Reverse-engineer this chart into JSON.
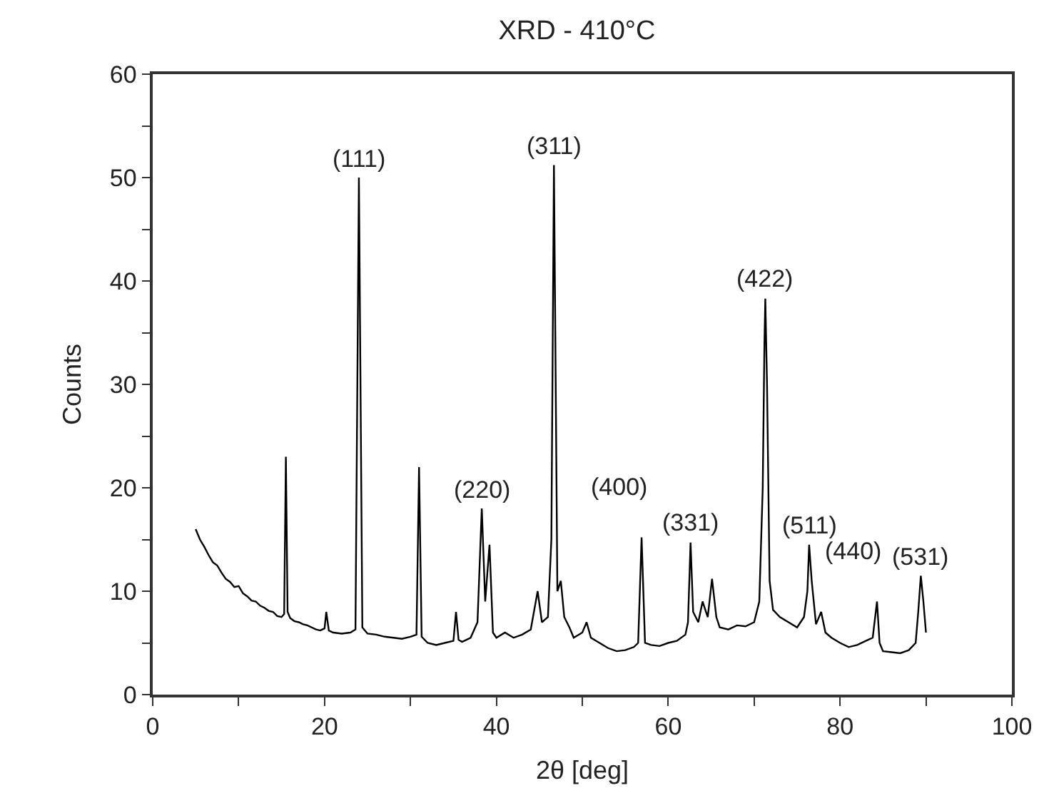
{
  "chart_data": {
    "type": "line",
    "title": "XRD - 410°C",
    "xlabel": "2θ [deg]",
    "ylabel": "Counts",
    "xlim": [
      0,
      100
    ],
    "ylim": [
      0,
      60
    ],
    "xticks": [
      0,
      {
        "value": 10,
        "label": null
      },
      20,
      {
        "value": 30,
        "label": null
      },
      40,
      {
        "value": 50,
        "label": null
      },
      60,
      {
        "value": 70,
        "label": null
      },
      80,
      {
        "value": 90,
        "label": null
      },
      100
    ],
    "yticks": [
      0,
      {
        "value": 5,
        "label": null
      },
      10,
      {
        "value": 15,
        "label": null
      },
      20,
      {
        "value": 25,
        "label": null
      },
      30,
      {
        "value": 35,
        "label": null
      },
      40,
      {
        "value": 45,
        "label": null
      },
      50,
      {
        "value": 55,
        "label": null
      },
      60
    ],
    "marker": "none",
    "line_style": "solid",
    "series": [
      {
        "color": "#000000",
        "x": [
          5,
          5.5,
          6,
          6.5,
          7,
          7.5,
          8,
          8.5,
          9,
          9.5,
          10,
          10.5,
          11,
          11.5,
          12,
          12.5,
          13,
          13.5,
          14,
          14.5,
          15,
          15.3,
          15.5,
          15.7,
          16,
          16.5,
          17,
          17.5,
          18,
          18.5,
          19,
          19.5,
          20,
          20.2,
          20.5,
          21,
          22,
          23,
          23.6,
          24,
          24.4,
          25,
          26,
          27,
          28,
          29,
          30,
          30.7,
          31,
          31.3,
          32,
          33,
          34,
          35,
          35.3,
          35.6,
          36,
          37,
          37.8,
          38.3,
          38.7,
          39.2,
          39.6,
          40,
          41,
          42,
          43,
          44,
          44.8,
          45.3,
          46,
          46.4,
          46.7,
          47.1,
          47.5,
          47.9,
          48.5,
          49,
          50,
          50.5,
          51,
          52,
          53,
          54,
          55,
          56,
          56.5,
          56.9,
          57.3,
          58,
          59,
          60,
          61,
          62,
          62.3,
          62.6,
          62.9,
          63.5,
          64,
          64.6,
          65.1,
          65.6,
          66,
          67,
          68,
          69,
          70,
          70.6,
          71,
          71.2,
          71.3,
          71.5,
          71.8,
          72.2,
          73,
          74,
          75,
          75.8,
          76.2,
          76.4,
          76.7,
          77.2,
          77.8,
          78.3,
          79,
          80,
          81,
          82,
          83,
          83.8,
          84.3,
          84.6,
          85,
          86,
          87,
          88,
          88.8,
          89.1,
          89.4,
          89.7,
          90
        ],
        "values": [
          16,
          15,
          14.3,
          13.5,
          12.8,
          12.5,
          11.8,
          11.2,
          10.9,
          10.4,
          10.5,
          9.8,
          9.5,
          9.1,
          9,
          8.6,
          8.4,
          8.1,
          8,
          7.6,
          7.5,
          7.8,
          23,
          8,
          7.4,
          7.1,
          7,
          6.8,
          6.7,
          6.5,
          6.3,
          6.2,
          6.4,
          8,
          6.2,
          6,
          5.9,
          6,
          6.3,
          50,
          6.5,
          5.9,
          5.8,
          5.6,
          5.5,
          5.4,
          5.6,
          5.8,
          22,
          5.6,
          5,
          4.8,
          5,
          5.2,
          8,
          5.3,
          5.1,
          5.5,
          7,
          18,
          9,
          14.5,
          6,
          5.5,
          6,
          5.5,
          5.8,
          6.3,
          10,
          7,
          7.5,
          15,
          51.2,
          10,
          11,
          7.5,
          6.5,
          5.5,
          6,
          7,
          5.5,
          5,
          4.5,
          4.2,
          4.3,
          4.6,
          5,
          15.2,
          5,
          4.8,
          4.7,
          5,
          5.2,
          5.8,
          7,
          14.7,
          8,
          7,
          9,
          7.5,
          11.2,
          7.5,
          6.5,
          6.3,
          6.7,
          6.6,
          7,
          9,
          20,
          34,
          38.3,
          30,
          11,
          8.2,
          7.5,
          7,
          6.5,
          7.5,
          10,
          14.5,
          11,
          6.8,
          8,
          6,
          5.5,
          5,
          4.6,
          4.8,
          5.2,
          5.5,
          9,
          5,
          4.2,
          4.1,
          4,
          4.3,
          5,
          8,
          11.5,
          9,
          6
        ]
      }
    ],
    "annotations": [
      {
        "text": "(111)",
        "x": 24,
        "y": 50
      },
      {
        "text": "(311)",
        "x": 46.7,
        "y": 51.2
      },
      {
        "text": "(220)",
        "x": 38.3,
        "y": 18
      },
      {
        "text": "(400)",
        "x": 56.9,
        "y": 15.2
      },
      {
        "text": "(331)",
        "x": 62.6,
        "y": 14.7
      },
      {
        "text": "(422)",
        "x": 71.3,
        "y": 38.3
      },
      {
        "text": "(511)",
        "x": 76.4,
        "y": 14.5
      },
      {
        "text": "(440)",
        "x": 84.3,
        "y": 9
      },
      {
        "text": "(531)",
        "x": 89.4,
        "y": 11.5
      }
    ]
  }
}
